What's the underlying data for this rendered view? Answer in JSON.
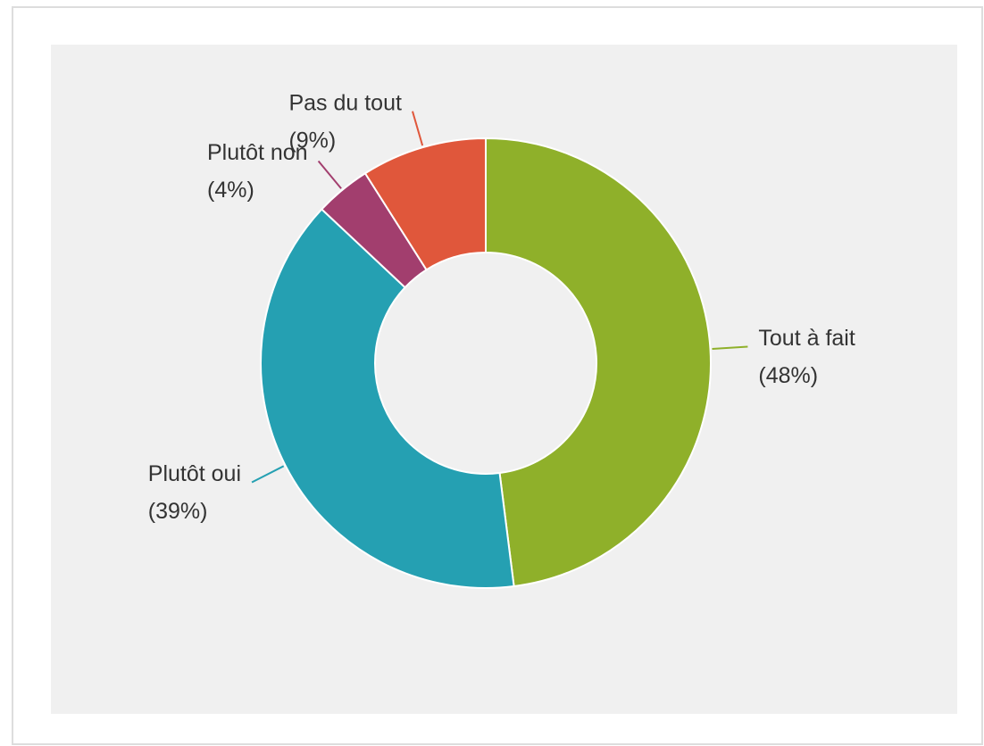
{
  "chart_data": {
    "type": "donut",
    "categories": [
      "Tout à fait",
      "Plutôt oui",
      "Plutôt non",
      "Pas du tout"
    ],
    "values": [
      48,
      39,
      4,
      9
    ],
    "value_labels": [
      "(48%)",
      "(39%)",
      "(4%)",
      "(9%)"
    ],
    "colors": [
      "#8fb02a",
      "#25a0b2",
      "#a23e6e",
      "#e0573b"
    ]
  }
}
